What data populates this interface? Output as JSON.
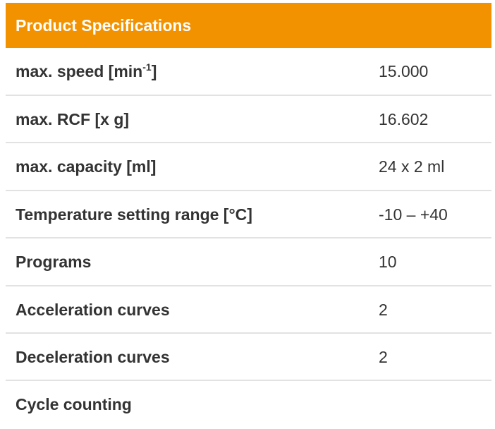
{
  "header": {
    "title": "Product Specifications"
  },
  "table": {
    "rows": [
      {
        "label": [
          "max. speed [min",
          "-1",
          "]"
        ],
        "value": "15.000"
      },
      {
        "label": "max. RCF [x g]",
        "value": "16.602"
      },
      {
        "label": "max. capacity [ml]",
        "value": "24 x 2 ml"
      },
      {
        "label": "Temperature setting range [°C]",
        "value": "-10 – +40"
      },
      {
        "label": "Programs",
        "value": "10"
      },
      {
        "label": "Acceleration curves",
        "value": "2"
      },
      {
        "label": "Deceleration curves",
        "value": "2"
      },
      {
        "label": "Cycle counting"
      }
    ]
  }
}
